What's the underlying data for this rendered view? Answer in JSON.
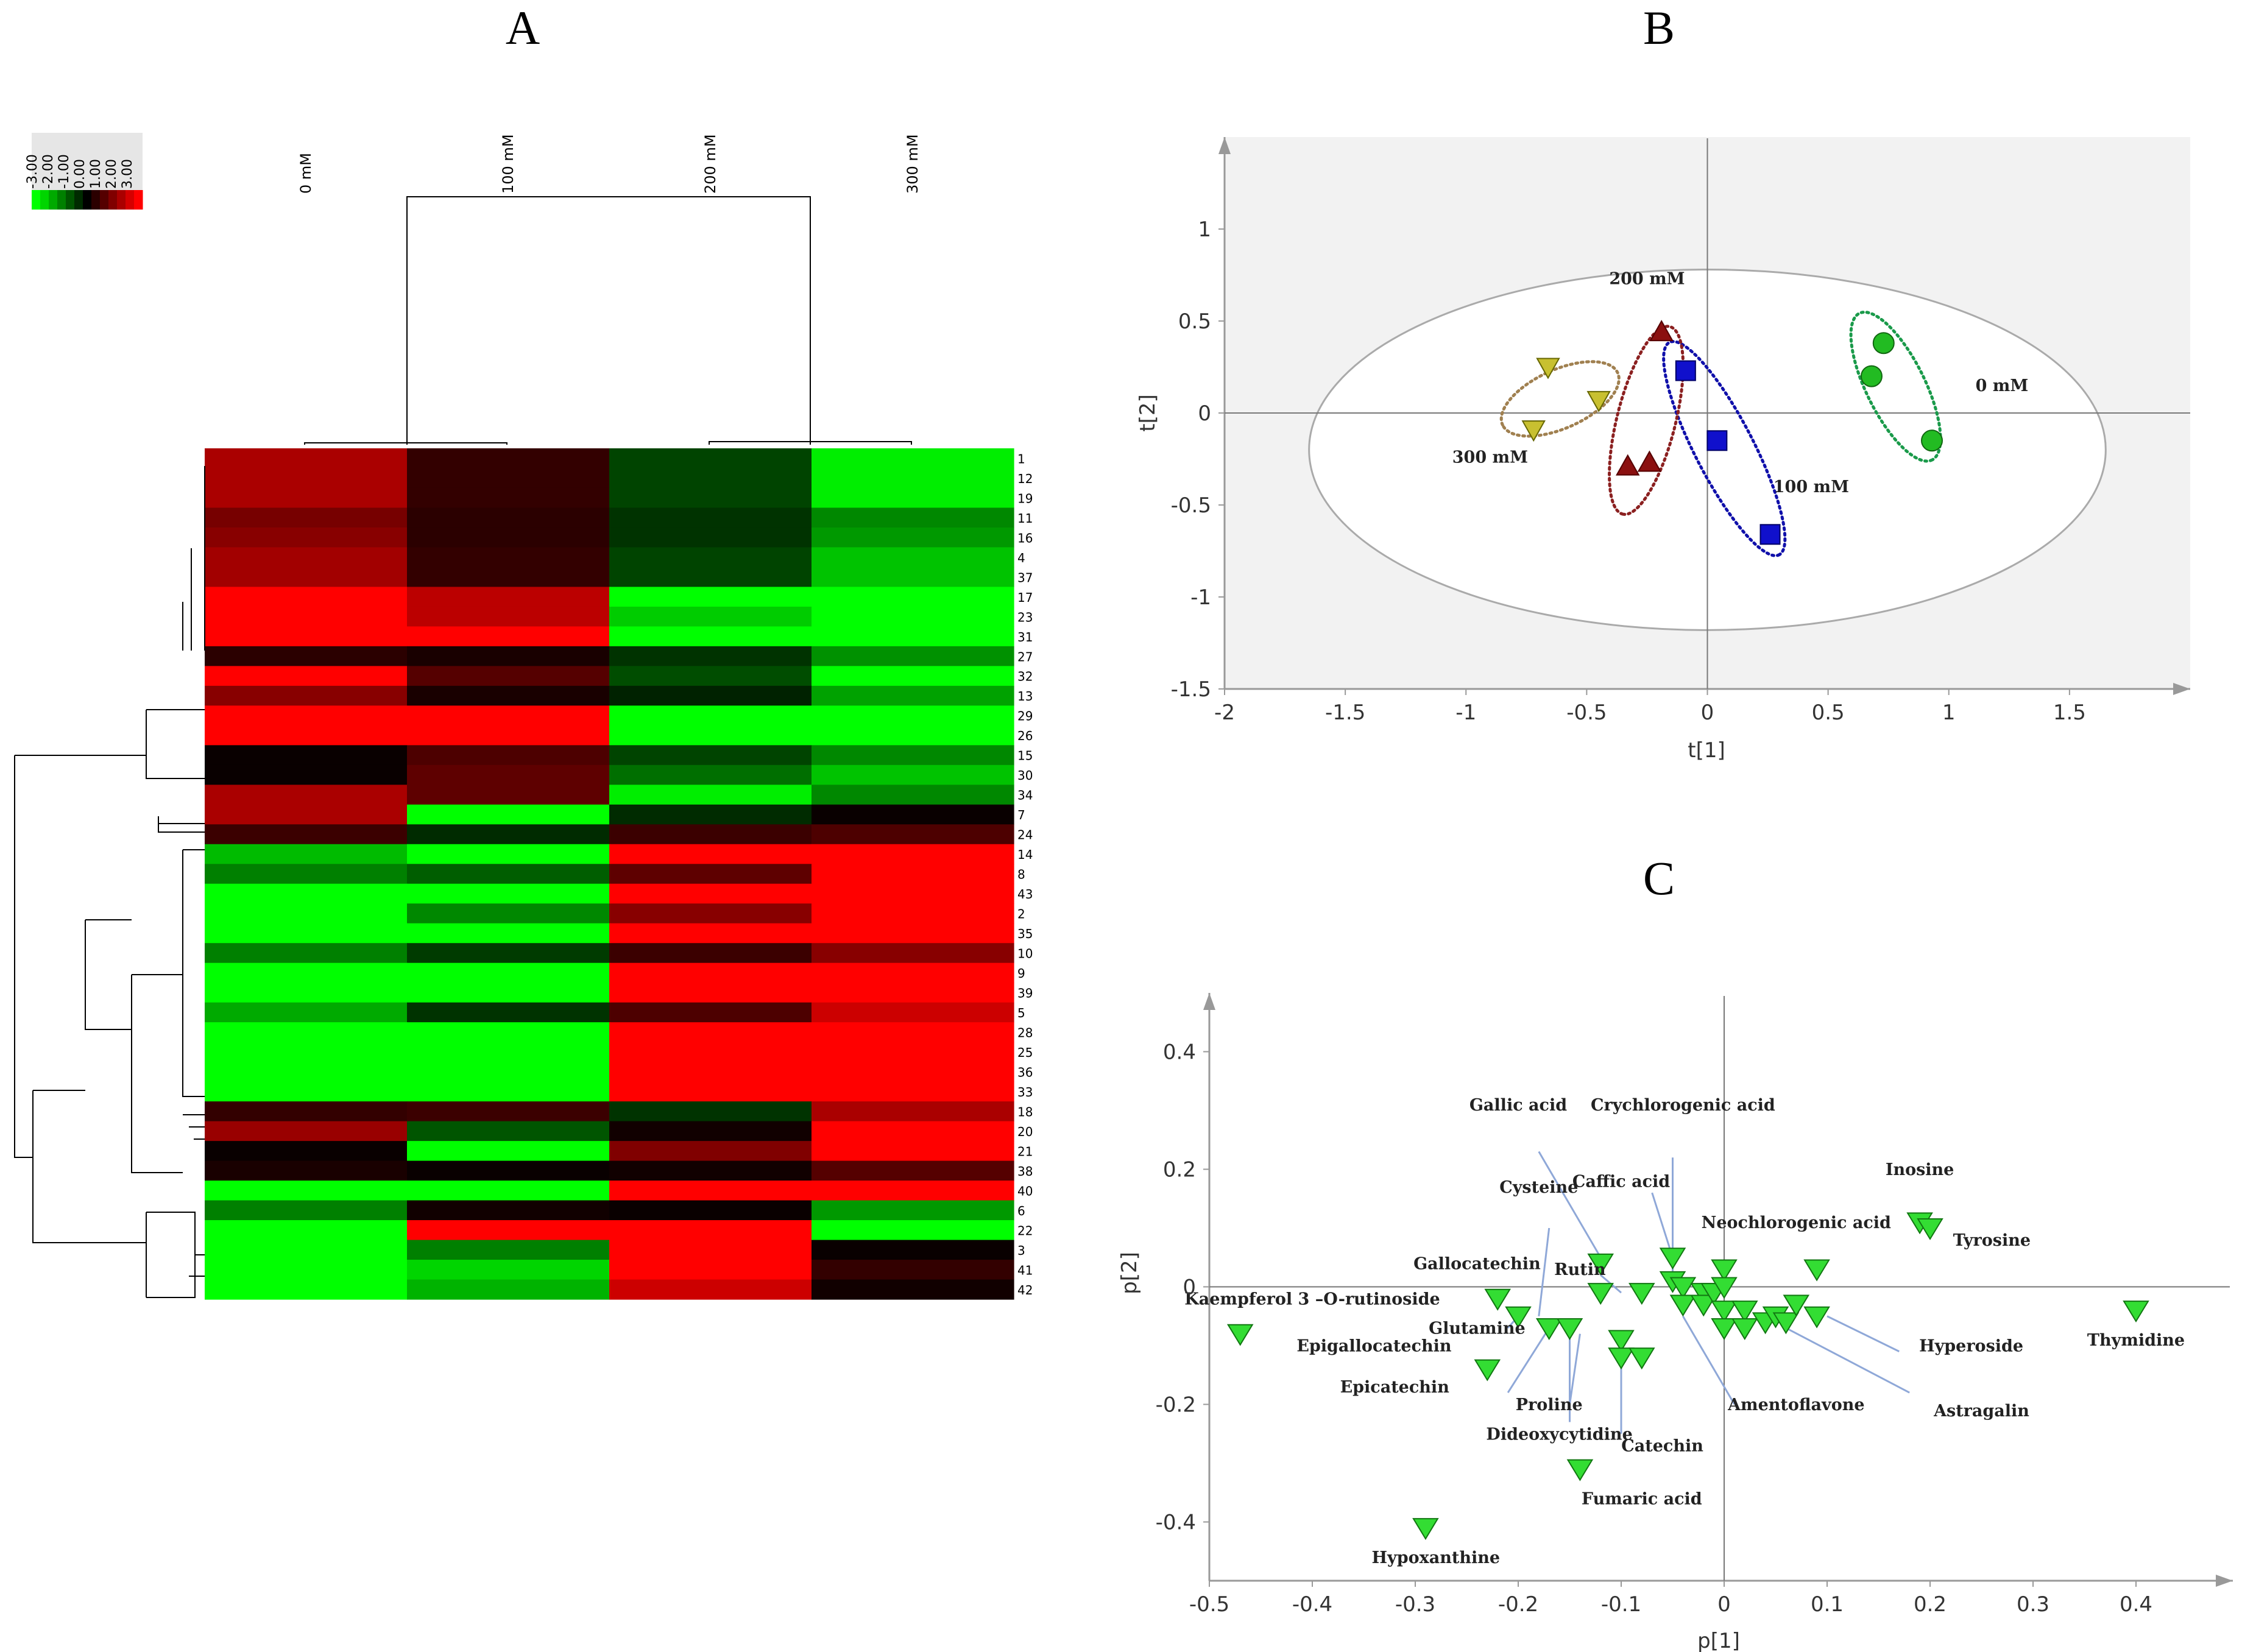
{
  "panels": {
    "a": "A",
    "b": "B",
    "c": "C"
  },
  "chart_data": [
    {
      "type": "heatmap",
      "panel": "A",
      "columns": [
        "0 mM",
        "100 mM",
        "200 mM",
        "300 mM"
      ],
      "rows": [
        "1",
        "12",
        "19",
        "11",
        "16",
        "4",
        "37",
        "17",
        "23",
        "31",
        "27",
        "32",
        "13",
        "29",
        "26",
        "15",
        "30",
        "34",
        "7",
        "24",
        "14",
        "8",
        "43",
        "2",
        "35",
        "10",
        "9",
        "39",
        "5",
        "28",
        "25",
        "36",
        "33",
        "18",
        "20",
        "21",
        "38",
        "40",
        "6",
        "22",
        "3",
        "41",
        "42"
      ],
      "values": [
        [
          2.0,
          0.6,
          -0.8,
          -2.8
        ],
        [
          2.0,
          0.6,
          -0.8,
          -2.8
        ],
        [
          2.0,
          0.6,
          -0.8,
          -2.8
        ],
        [
          1.4,
          0.5,
          -0.6,
          -1.6
        ],
        [
          1.6,
          0.5,
          -0.6,
          -1.8
        ],
        [
          1.9,
          0.6,
          -0.8,
          -2.3
        ],
        [
          1.9,
          0.6,
          -0.8,
          -2.3
        ],
        [
          3.0,
          2.2,
          -3.0,
          -3.0
        ],
        [
          3.0,
          2.2,
          -2.4,
          -3.0
        ],
        [
          3.0,
          3.0,
          -3.0,
          -3.0
        ],
        [
          0.5,
          0.3,
          -0.6,
          -1.7
        ],
        [
          3.0,
          1.0,
          -0.9,
          -3.0
        ],
        [
          1.6,
          0.3,
          -0.4,
          -1.9
        ],
        [
          3.0,
          3.0,
          -3.0,
          -3.0
        ],
        [
          3.0,
          3.0,
          -3.0,
          -3.0
        ],
        [
          0.1,
          0.9,
          -0.8,
          -1.6
        ],
        [
          0.1,
          1.1,
          -1.3,
          -2.3
        ],
        [
          2.0,
          1.1,
          -2.8,
          -1.6
        ],
        [
          2.0,
          -3.0,
          -0.5,
          0.1
        ],
        [
          0.7,
          -0.5,
          0.7,
          0.9
        ],
        [
          -2.2,
          -3.0,
          3.0,
          3.0
        ],
        [
          -1.5,
          -1.1,
          1.1,
          3.0
        ],
        [
          -3.0,
          -3.0,
          3.0,
          3.0
        ],
        [
          -3.0,
          -1.6,
          1.6,
          3.0
        ],
        [
          -3.0,
          -3.0,
          3.0,
          3.0
        ],
        [
          -1.5,
          -0.7,
          0.7,
          1.6
        ],
        [
          -3.0,
          -3.0,
          3.0,
          3.0
        ],
        [
          -3.0,
          -3.0,
          3.0,
          3.0
        ],
        [
          -2.0,
          -0.6,
          0.9,
          2.4
        ],
        [
          -3.0,
          -3.0,
          3.0,
          3.0
        ],
        [
          -3.0,
          -3.0,
          3.0,
          3.0
        ],
        [
          -3.0,
          -3.0,
          3.0,
          3.0
        ],
        [
          -3.0,
          -3.0,
          3.0,
          3.0
        ],
        [
          0.6,
          0.7,
          -0.6,
          2.0
        ],
        [
          1.8,
          -1.0,
          0.2,
          3.0
        ],
        [
          0.1,
          -3.0,
          1.5,
          3.0
        ],
        [
          0.3,
          0.1,
          0.2,
          1.0
        ],
        [
          -3.0,
          -3.0,
          3.0,
          3.0
        ],
        [
          -1.5,
          0.2,
          0.1,
          -1.8
        ],
        [
          -3.0,
          3.0,
          3.0,
          -3.0
        ],
        [
          -3.0,
          -1.5,
          3.0,
          0.1
        ],
        [
          -3.0,
          -2.5,
          3.0,
          0.6
        ],
        [
          -3.0,
          -2.1,
          2.4,
          0.2
        ]
      ],
      "legend": {
        "ticks": [
          "-3.00",
          "-2.00",
          "-1.00",
          "0.00",
          "1.00",
          "2.00",
          "3.00"
        ],
        "min": -3,
        "max": 3
      },
      "colors": {
        "low": "#00ff00",
        "mid": "#000000",
        "high": "#ff0000"
      }
    },
    {
      "type": "scatter",
      "panel": "B",
      "xlabel": "t[1]",
      "ylabel": "t[2]",
      "xlim": [
        -2,
        2
      ],
      "ylim": [
        -1.5,
        1.5
      ],
      "xticks": [
        "-2",
        "-1.5",
        "-1",
        "-0.5",
        "0",
        "0.5",
        "1",
        "1.5"
      ],
      "yticks": [
        "-1.5",
        "-1",
        "-0.5",
        "0",
        "0.5",
        "1"
      ],
      "ellipse": {
        "cx": 0,
        "cy": -0.2,
        "rx": 1.65,
        "ry": 0.98
      },
      "background": "#f2f2f2",
      "series": [
        {
          "name": "0 mM",
          "marker": "circle",
          "color": "#22bb22",
          "ring_color": "#1a9a4a",
          "points": [
            [
              0.73,
              0.38
            ],
            [
              0.68,
              0.2
            ],
            [
              0.93,
              -0.15
            ]
          ],
          "label_at": [
            1.22,
            0.12
          ]
        },
        {
          "name": "100 mM",
          "marker": "square",
          "color": "#1010cc",
          "ring_color": "#1010aa",
          "points": [
            [
              -0.09,
              0.23
            ],
            [
              0.04,
              -0.15
            ],
            [
              0.26,
              -0.66
            ]
          ],
          "label_at": [
            0.43,
            -0.43
          ]
        },
        {
          "name": "200 mM",
          "marker": "triangle-up",
          "color": "#8b1010",
          "ring_color": "#8b2020",
          "points": [
            [
              -0.19,
              0.44
            ],
            [
              -0.33,
              -0.29
            ],
            [
              -0.24,
              -0.27
            ]
          ],
          "label_at": [
            -0.25,
            0.7
          ]
        },
        {
          "name": "300 mM",
          "marker": "triangle-down",
          "color": "#c8c030",
          "ring_color": "#a08050",
          "points": [
            [
              -0.66,
              0.25
            ],
            [
              -0.45,
              0.07
            ],
            [
              -0.72,
              -0.09
            ]
          ],
          "label_at": [
            -0.9,
            -0.27
          ]
        }
      ]
    },
    {
      "type": "scatter",
      "panel": "C",
      "xlabel": "p[1]",
      "ylabel": "p[2]",
      "xlim": [
        -0.5,
        0.5
      ],
      "ylim": [
        -0.5,
        0.5
      ],
      "xticks": [
        "-0.5",
        "-0.4",
        "-0.3",
        "-0.2",
        "-0.1",
        "0",
        "0.1",
        "0.2",
        "0.3",
        "0.4"
      ],
      "yticks": [
        "-0.4",
        "-0.2",
        "0",
        "0.2",
        "0.4"
      ],
      "marker_color": "#33dd33",
      "points": [
        [
          -0.47,
          -0.08
        ],
        [
          -0.29,
          -0.41
        ],
        [
          -0.23,
          -0.14
        ],
        [
          -0.22,
          -0.02
        ],
        [
          -0.2,
          -0.05
        ],
        [
          -0.17,
          -0.07
        ],
        [
          -0.15,
          -0.07
        ],
        [
          -0.14,
          -0.31
        ],
        [
          -0.12,
          0.04
        ],
        [
          -0.12,
          -0.01
        ],
        [
          -0.1,
          -0.09
        ],
        [
          -0.1,
          -0.12
        ],
        [
          -0.08,
          -0.12
        ],
        [
          -0.08,
          -0.01
        ],
        [
          -0.05,
          0.05
        ],
        [
          -0.05,
          0.01
        ],
        [
          -0.04,
          0.0
        ],
        [
          -0.04,
          -0.03
        ],
        [
          -0.02,
          -0.01
        ],
        [
          -0.02,
          -0.03
        ],
        [
          -0.01,
          -0.01
        ],
        [
          0.0,
          0.03
        ],
        [
          0.0,
          0.0
        ],
        [
          0.0,
          -0.04
        ],
        [
          0.0,
          -0.07
        ],
        [
          0.02,
          -0.04
        ],
        [
          0.02,
          -0.07
        ],
        [
          0.04,
          -0.06
        ],
        [
          0.05,
          -0.05
        ],
        [
          0.06,
          -0.06
        ],
        [
          0.07,
          -0.03
        ],
        [
          0.09,
          -0.05
        ],
        [
          0.09,
          0.03
        ],
        [
          0.19,
          0.11
        ],
        [
          0.2,
          0.1
        ],
        [
          0.4,
          -0.04
        ]
      ],
      "annotations": [
        {
          "text": "Gallic acid",
          "at": [
            -0.2,
            0.3
          ],
          "line_to": [
            -0.12,
            0.05
          ],
          "line_from": [
            -0.18,
            0.23
          ]
        },
        {
          "text": "Crychlorogenic acid",
          "at": [
            -0.04,
            0.3
          ],
          "line_to": [
            -0.05,
            0.01
          ],
          "line_from": [
            -0.05,
            0.22
          ]
        },
        {
          "text": "Inosine",
          "at": [
            0.19,
            0.19
          ]
        },
        {
          "text": "Caffic acid",
          "at": [
            -0.1,
            0.17
          ],
          "line_to": [
            -0.05,
            0.05
          ],
          "line_from": [
            -0.07,
            0.16
          ]
        },
        {
          "text": "Cysteine",
          "at": [
            -0.18,
            0.16
          ],
          "line_to": [
            -0.18,
            -0.05
          ],
          "line_from": [
            -0.17,
            0.1
          ]
        },
        {
          "text": "Neochlorogenic acid",
          "at": [
            0.07,
            0.1
          ]
        },
        {
          "text": "Tyrosine",
          "at": [
            0.26,
            0.07
          ]
        },
        {
          "text": "Gallocatechin",
          "at": [
            -0.24,
            0.03
          ]
        },
        {
          "text": "Rutin",
          "at": [
            -0.14,
            0.02
          ],
          "line_to": [
            -0.1,
            -0.01
          ],
          "line_from": [
            -0.12,
            0.02
          ]
        },
        {
          "text": "Kaempferol 3 –O-rutinoside",
          "at": [
            -0.4,
            -0.03
          ]
        },
        {
          "text": "Glutamine",
          "at": [
            -0.24,
            -0.08
          ],
          "line_to": [
            -0.2,
            -0.05
          ],
          "line_from": [
            -0.21,
            -0.07
          ]
        },
        {
          "text": "Epigallocatechin",
          "at": [
            -0.34,
            -0.11
          ]
        },
        {
          "text": "Epicatechin",
          "at": [
            -0.32,
            -0.18
          ],
          "line_to": [
            -0.17,
            -0.07
          ],
          "line_from": [
            -0.21,
            -0.18
          ]
        },
        {
          "text": "Hyperoside",
          "at": [
            0.24,
            -0.11
          ],
          "line_to": [
            0.1,
            -0.05
          ],
          "line_from": [
            0.17,
            -0.11
          ]
        },
        {
          "text": "Thymidine",
          "at": [
            0.4,
            -0.1
          ]
        },
        {
          "text": "Proline",
          "at": [
            -0.17,
            -0.21
          ],
          "line_to": [
            -0.14,
            -0.08
          ],
          "line_from": [
            -0.15,
            -0.2
          ]
        },
        {
          "text": "Amentoflavone",
          "at": [
            0.07,
            -0.21
          ],
          "line_to": [
            -0.04,
            -0.05
          ],
          "line_from": [
            0.01,
            -0.2
          ]
        },
        {
          "text": "Astragalin",
          "at": [
            0.25,
            -0.22
          ],
          "line_to": [
            0.06,
            -0.07
          ],
          "line_from": [
            0.18,
            -0.18
          ]
        },
        {
          "text": "Dideoxycytidine",
          "at": [
            -0.16,
            -0.26
          ],
          "line_to": [
            -0.15,
            -0.08
          ],
          "line_from": [
            -0.15,
            -0.23
          ]
        },
        {
          "text": "Catechin",
          "at": [
            -0.06,
            -0.28
          ],
          "line_to": [
            -0.1,
            -0.12
          ],
          "line_from": [
            -0.1,
            -0.25
          ]
        },
        {
          "text": "Fumaric acid",
          "at": [
            -0.08,
            -0.37
          ]
        },
        {
          "text": "Hypoxanthine",
          "at": [
            -0.28,
            -0.47
          ]
        }
      ]
    }
  ]
}
